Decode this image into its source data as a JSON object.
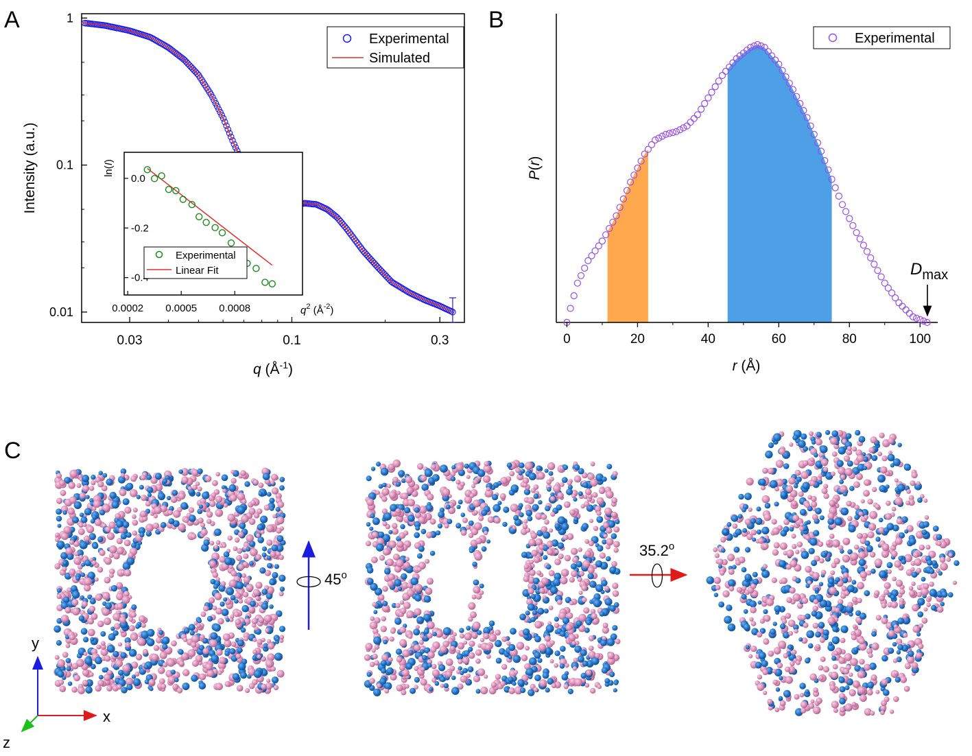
{
  "panels": {
    "A": "A",
    "B": "B",
    "C": "C"
  },
  "chart_data": [
    {
      "panel": "A",
      "type": "scatter",
      "x_scale": "log",
      "y_scale": "log",
      "xlim": [
        0.021,
        0.36
      ],
      "ylim": [
        0.0085,
        1.07
      ],
      "xticks": [
        0.03,
        0.1,
        0.3
      ],
      "xtick_labels": [
        "0.03",
        "0.1",
        "0.3"
      ],
      "yticks": [
        1,
        0.1,
        0.01
      ],
      "ytick_labels": [
        "1",
        "0.1",
        "0.01"
      ],
      "xlabel": {
        "italic": "q",
        "rest": " (Å",
        "sup": "-1",
        "tail": ")"
      },
      "ylabel": "Intensity (a.u.)",
      "legend_position": "top-right",
      "series": [
        {
          "name": "Experimental",
          "marker": "open-circle",
          "color": "#1a1ae6",
          "curve_knots": [
            [
              0.021,
              0.93
            ],
            [
              0.025,
              0.89
            ],
            [
              0.03,
              0.82
            ],
            [
              0.035,
              0.74
            ],
            [
              0.04,
              0.63
            ],
            [
              0.045,
              0.52
            ],
            [
              0.05,
              0.41
            ],
            [
              0.055,
              0.3
            ],
            [
              0.06,
              0.21
            ],
            [
              0.065,
              0.14
            ],
            [
              0.07,
              0.1
            ],
            [
              0.075,
              0.075
            ],
            [
              0.08,
              0.06
            ],
            [
              0.085,
              0.054
            ],
            [
              0.09,
              0.052
            ],
            [
              0.1,
              0.053
            ],
            [
              0.11,
              0.055
            ],
            [
              0.12,
              0.054
            ],
            [
              0.13,
              0.05
            ],
            [
              0.14,
              0.044
            ],
            [
              0.15,
              0.037
            ],
            [
              0.17,
              0.026
            ],
            [
              0.19,
              0.02
            ],
            [
              0.21,
              0.016
            ],
            [
              0.24,
              0.0135
            ],
            [
              0.27,
              0.012
            ],
            [
              0.3,
              0.011
            ],
            [
              0.33,
              0.01
            ]
          ],
          "error_bar_last_point": [
            0.0085,
            0.0125
          ]
        },
        {
          "name": "Simulated",
          "line": "solid",
          "color": "#e03030"
        }
      ],
      "inset": {
        "type": "scatter",
        "xlim": [
          0.00018,
          0.00118
        ],
        "ylim": [
          -0.47,
          0.105
        ],
        "xticks": [
          0.0002,
          0.0005,
          0.0008
        ],
        "xtick_labels": [
          "0.0002",
          "0.0005",
          "0.0008"
        ],
        "yticks": [
          0.0,
          -0.2,
          -0.4
        ],
        "ytick_labels": [
          "0.0",
          "-0.2",
          "-0.4"
        ],
        "xlabel": {
          "italic": "q",
          "sup": "2",
          "rest": " (Å",
          "sup2": "-2",
          "tail": ")"
        },
        "ylabel": {
          "pre": "ln(",
          "italic": "I",
          "post": ")"
        },
        "legend_position": "bottom-left",
        "series": [
          {
            "name": "Experimental",
            "marker": "open-circle",
            "color": "#1a8a1a",
            "x": [
              0.00031,
              0.00035,
              0.00039,
              0.00043,
              0.00047,
              0.00051,
              0.00056,
              0.0006,
              0.00064,
              0.00069,
              0.00073,
              0.00078,
              0.00082,
              0.00087,
              0.00092,
              0.00097,
              0.00101
            ],
            "y": [
              0.035,
              0.01,
              0.032,
              -0.012,
              -0.006,
              -0.03,
              -0.04,
              -0.078,
              -0.09,
              -0.1,
              -0.11,
              -0.14,
              -0.18,
              -0.2,
              -0.21,
              -0.255,
              -0.25
            ]
          },
          {
            "name": "Linear Fit",
            "line": "solid",
            "color": "#e03030",
            "x": [
              0.00031,
              0.00101
            ],
            "y": [
              0.04,
              -0.35
            ]
          }
        ]
      }
    },
    {
      "panel": "B",
      "type": "scatter",
      "xlim": [
        -3,
        105
      ],
      "ylim": [
        0,
        1.1
      ],
      "xticks": [
        0,
        20,
        40,
        60,
        80,
        100
      ],
      "xtick_labels": [
        "0",
        "20",
        "40",
        "60",
        "80",
        "100"
      ],
      "xlabel": {
        "italic": "r",
        "rest": " (Å)"
      },
      "ylabel": {
        "italic": "P",
        "pre": "(",
        "italic2": "r",
        "post": ")"
      },
      "legend_position": "top-right",
      "series": [
        {
          "name": "Experimental",
          "marker": "open-circle",
          "color": "#9a4be6",
          "curve_knots": [
            [
              0,
              0.0
            ],
            [
              1,
              0.05
            ],
            [
              3,
              0.14
            ],
            [
              6,
              0.22
            ],
            [
              10,
              0.29
            ],
            [
              14,
              0.38
            ],
            [
              18,
              0.5
            ],
            [
              22,
              0.6
            ],
            [
              25,
              0.65
            ],
            [
              28,
              0.67
            ],
            [
              31,
              0.68
            ],
            [
              34,
              0.7
            ],
            [
              37,
              0.74
            ],
            [
              40,
              0.8
            ],
            [
              44,
              0.88
            ],
            [
              48,
              0.94
            ],
            [
              52,
              0.98
            ],
            [
              54,
              0.99
            ],
            [
              56,
              0.98
            ],
            [
              60,
              0.92
            ],
            [
              64,
              0.83
            ],
            [
              68,
              0.73
            ],
            [
              72,
              0.61
            ],
            [
              75,
              0.51
            ],
            [
              78,
              0.42
            ],
            [
              82,
              0.32
            ],
            [
              86,
              0.23
            ],
            [
              90,
              0.14
            ],
            [
              94,
              0.07
            ],
            [
              98,
              0.02
            ],
            [
              101,
              0.005
            ],
            [
              102,
              0.0
            ]
          ]
        }
      ],
      "shaded_regions": [
        {
          "from": 11.5,
          "to": 23.0,
          "color": "#ffa84d"
        },
        {
          "from": 45.5,
          "to": 75.0,
          "color": "#4d9fe6"
        }
      ],
      "annotation": {
        "main": "D",
        "sub": "max",
        "at_r": 102
      }
    }
  ],
  "panel_c": {
    "rotation_1": {
      "value": "45",
      "sup": "o"
    },
    "rotation_2": {
      "value": "35.2",
      "sup": "o"
    },
    "axes": {
      "x": "x",
      "y": "y",
      "z": "z"
    },
    "colors": {
      "pink": "#d98cb5",
      "blue": "#1f6fc4"
    }
  }
}
